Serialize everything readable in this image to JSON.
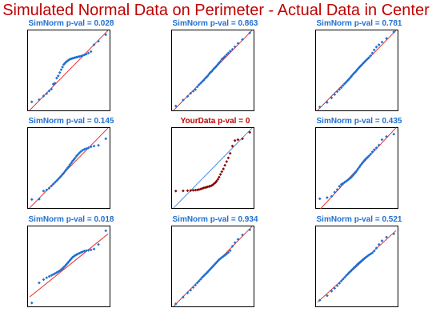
{
  "title": "Simulated Normal Data on Perimeter - Actual Data in Center",
  "colors": {
    "title": "#c00000",
    "sim_title": "#1f6fd0",
    "sim_points": "#1f6fd0",
    "sim_line": "#e03030",
    "actual_title": "#c00000",
    "actual_points": "#8b0000",
    "actual_line": "#4a90d9"
  },
  "chart_data": [
    {
      "type": "scatter",
      "title": "SimNorm p-val =  0.028",
      "theoretical": [
        -2.17,
        -1.74,
        -1.48,
        -1.3,
        -1.15,
        -1.02,
        -0.91,
        -0.81,
        -0.71,
        -0.62,
        -0.53,
        -0.45,
        -0.37,
        -0.3,
        -0.22,
        -0.15,
        -0.07,
        0,
        0.07,
        0.15,
        0.22,
        0.3,
        0.37,
        0.45,
        0.53,
        0.62,
        0.71,
        0.81,
        0.91,
        1.02,
        1.15,
        1.3,
        1.48,
        1.74,
        2.17
      ],
      "sample": [
        -1.72,
        -1.6,
        -1.4,
        -1.27,
        -1.12,
        -1.02,
        -0.75,
        -0.7,
        -0.42,
        -0.3,
        -0.12,
        0.04,
        0.18,
        0.32,
        0.4,
        0.47,
        0.52,
        0.57,
        0.61,
        0.64,
        0.66,
        0.68,
        0.7,
        0.72,
        0.74,
        0.76,
        0.78,
        0.81,
        0.85,
        0.89,
        0.95,
        1.03,
        1.4,
        1.6,
        1.95
      ],
      "line": {
        "slope": 0.95,
        "intercept": 0.0
      }
    },
    {
      "type": "scatter",
      "title": "SimNorm p-val =  0.863",
      "theoretical": [
        -2.17,
        -1.74,
        -1.48,
        -1.3,
        -1.15,
        -1.02,
        -0.91,
        -0.81,
        -0.71,
        -0.62,
        -0.53,
        -0.45,
        -0.37,
        -0.3,
        -0.22,
        -0.15,
        -0.07,
        0,
        0.07,
        0.15,
        0.22,
        0.3,
        0.37,
        0.45,
        0.53,
        0.62,
        0.71,
        0.81,
        0.91,
        1.02,
        1.15,
        1.3,
        1.48,
        1.74,
        2.17
      ],
      "sample": [
        -1.95,
        -1.62,
        -1.42,
        -1.25,
        -1.14,
        -1.05,
        -0.9,
        -0.79,
        -0.7,
        -0.61,
        -0.53,
        -0.44,
        -0.37,
        -0.3,
        -0.2,
        -0.12,
        -0.06,
        0.02,
        0.1,
        0.17,
        0.24,
        0.33,
        0.41,
        0.5,
        0.61,
        0.68,
        0.76,
        0.86,
        0.95,
        1.05,
        1.15,
        1.29,
        1.48,
        1.69,
        2.05
      ],
      "line": {
        "slope": 0.95,
        "intercept": 0.0
      }
    },
    {
      "type": "scatter",
      "title": "SimNorm p-val =  0.781",
      "theoretical": [
        -2.17,
        -1.74,
        -1.48,
        -1.3,
        -1.15,
        -1.02,
        -0.91,
        -0.81,
        -0.71,
        -0.62,
        -0.53,
        -0.45,
        -0.37,
        -0.3,
        -0.22,
        -0.15,
        -0.07,
        0,
        0.07,
        0.15,
        0.22,
        0.3,
        0.37,
        0.45,
        0.53,
        0.62,
        0.71,
        0.81,
        0.91,
        1.02,
        1.15,
        1.3,
        1.48,
        1.74,
        2.17
      ],
      "sample": [
        -2.0,
        -1.75,
        -1.5,
        -1.32,
        -1.16,
        -1.04,
        -0.94,
        -0.83,
        -0.73,
        -0.64,
        -0.55,
        -0.47,
        -0.38,
        -0.3,
        -0.21,
        -0.14,
        -0.07,
        0.01,
        0.09,
        0.17,
        0.24,
        0.31,
        0.39,
        0.46,
        0.54,
        0.62,
        0.7,
        0.8,
        0.95,
        1.12,
        1.28,
        1.4,
        1.55,
        1.75,
        2.1
      ],
      "line": {
        "slope": 0.95,
        "intercept": 0.0
      }
    },
    {
      "type": "scatter",
      "title": "SimNorm p-val =  0.145",
      "theoretical": [
        -2.17,
        -1.74,
        -1.48,
        -1.3,
        -1.15,
        -1.02,
        -0.91,
        -0.81,
        -0.71,
        -0.62,
        -0.53,
        -0.45,
        -0.37,
        -0.3,
        -0.22,
        -0.15,
        -0.07,
        0,
        0.07,
        0.15,
        0.22,
        0.3,
        0.37,
        0.45,
        0.53,
        0.62,
        0.71,
        0.81,
        0.91,
        1.02,
        1.15,
        1.3,
        1.48,
        1.74,
        2.17
      ],
      "sample": [
        -1.72,
        -1.7,
        -1.26,
        -1.2,
        -1.1,
        -0.98,
        -0.88,
        -0.79,
        -0.7,
        -0.61,
        -0.52,
        -0.44,
        -0.35,
        -0.28,
        -0.18,
        -0.09,
        0.0,
        0.08,
        0.18,
        0.28,
        0.38,
        0.46,
        0.55,
        0.65,
        0.73,
        0.82,
        0.9,
        0.97,
        1.02,
        1.06,
        1.1,
        1.16,
        1.2,
        1.24,
        1.6
      ],
      "line": {
        "slope": 0.95,
        "intercept": 0.0
      }
    },
    {
      "type": "scatter",
      "title": "YourData p-val =  0",
      "theoretical": [
        -2.17,
        -1.74,
        -1.48,
        -1.3,
        -1.15,
        -1.02,
        -0.91,
        -0.81,
        -0.71,
        -0.62,
        -0.53,
        -0.45,
        -0.37,
        -0.3,
        -0.22,
        -0.15,
        -0.07,
        0,
        0.07,
        0.15,
        0.22,
        0.3,
        0.37,
        0.45,
        0.53,
        0.62,
        0.71,
        0.81,
        0.91,
        1.02,
        1.15,
        1.3,
        1.48,
        1.74,
        2.17
      ],
      "sample": [
        -1.26,
        -1.25,
        -1.24,
        -1.23,
        -1.22,
        -1.21,
        -1.2,
        -1.18,
        -1.15,
        -1.12,
        -1.09,
        -1.07,
        -1.05,
        -1.03,
        -1.01,
        -0.99,
        -0.96,
        -0.92,
        -0.86,
        -0.8,
        -0.72,
        -0.62,
        -0.5,
        -0.35,
        -0.2,
        -0.05,
        0.15,
        0.35,
        0.55,
        0.8,
        1.2,
        1.5,
        1.55,
        1.6,
        1.95
      ],
      "line": {
        "slope": 0.95,
        "intercept": 0.0
      }
    },
    {
      "type": "scatter",
      "title": "SimNorm p-val =  0.435",
      "theoretical": [
        -2.17,
        -1.74,
        -1.48,
        -1.3,
        -1.15,
        -1.02,
        -0.91,
        -0.81,
        -0.71,
        -0.62,
        -0.53,
        -0.45,
        -0.37,
        -0.3,
        -0.22,
        -0.15,
        -0.07,
        0,
        0.07,
        0.15,
        0.22,
        0.3,
        0.37,
        0.45,
        0.53,
        0.62,
        0.71,
        0.81,
        0.91,
        1.02,
        1.15,
        1.3,
        1.48,
        1.74,
        2.17
      ],
      "sample": [
        -1.68,
        -1.62,
        -1.55,
        -1.32,
        -1.18,
        -1.0,
        -0.9,
        -0.84,
        -0.78,
        -0.72,
        -0.66,
        -0.6,
        -0.54,
        -0.48,
        -0.4,
        -0.32,
        -0.24,
        -0.15,
        -0.05,
        0.05,
        0.15,
        0.24,
        0.33,
        0.42,
        0.5,
        0.58,
        0.66,
        0.76,
        0.88,
        1.0,
        1.1,
        1.25,
        1.55,
        1.72,
        1.85
      ],
      "line": {
        "slope": 1.0,
        "intercept": -0.1
      }
    },
    {
      "type": "scatter",
      "title": "SimNorm p-val =  0.018",
      "theoretical": [
        -2.17,
        -1.74,
        -1.48,
        -1.3,
        -1.15,
        -1.02,
        -0.91,
        -0.81,
        -0.71,
        -0.62,
        -0.53,
        -0.45,
        -0.37,
        -0.3,
        -0.22,
        -0.15,
        -0.07,
        0,
        0.07,
        0.15,
        0.22,
        0.3,
        0.37,
        0.45,
        0.53,
        0.62,
        0.71,
        0.81,
        0.91,
        1.02,
        1.15,
        1.3,
        1.48,
        1.74,
        2.17
      ],
      "sample": [
        -2.0,
        -0.9,
        -0.72,
        -0.62,
        -0.55,
        -0.49,
        -0.44,
        -0.39,
        -0.34,
        -0.29,
        -0.24,
        -0.18,
        -0.12,
        -0.05,
        0.02,
        0.1,
        0.18,
        0.26,
        0.34,
        0.42,
        0.5,
        0.55,
        0.6,
        0.64,
        0.68,
        0.72,
        0.76,
        0.8,
        0.84,
        0.86,
        0.88,
        0.9,
        0.95,
        1.2,
        1.95
      ],
      "line": {
        "slope": 0.75,
        "intercept": 0.05
      }
    },
    {
      "type": "scatter",
      "title": "SimNorm p-val =  0.934",
      "theoretical": [
        -2.17,
        -1.74,
        -1.48,
        -1.3,
        -1.15,
        -1.02,
        -0.91,
        -0.81,
        -0.71,
        -0.62,
        -0.53,
        -0.45,
        -0.37,
        -0.3,
        -0.22,
        -0.15,
        -0.07,
        0,
        0.07,
        0.15,
        0.22,
        0.3,
        0.37,
        0.45,
        0.53,
        0.62,
        0.71,
        0.81,
        0.91,
        1.02,
        1.15,
        1.3,
        1.48,
        1.74,
        2.17
      ],
      "sample": [
        -2.05,
        -1.68,
        -1.45,
        -1.3,
        -1.15,
        -1.02,
        -0.9,
        -0.8,
        -0.7,
        -0.6,
        -0.52,
        -0.44,
        -0.37,
        -0.3,
        -0.22,
        -0.15,
        -0.07,
        0.0,
        0.07,
        0.15,
        0.22,
        0.3,
        0.37,
        0.43,
        0.49,
        0.55,
        0.61,
        0.68,
        0.76,
        0.86,
        1.1,
        1.3,
        1.48,
        1.72,
        2.0
      ],
      "line": {
        "slope": 0.95,
        "intercept": 0.0
      }
    },
    {
      "type": "scatter",
      "title": "SimNorm p-val =  0.521",
      "theoretical": [
        -2.17,
        -1.74,
        -1.48,
        -1.3,
        -1.15,
        -1.02,
        -0.91,
        -0.81,
        -0.71,
        -0.62,
        -0.53,
        -0.45,
        -0.37,
        -0.3,
        -0.22,
        -0.15,
        -0.07,
        0,
        0.07,
        0.15,
        0.22,
        0.3,
        0.37,
        0.45,
        0.53,
        0.62,
        0.71,
        0.81,
        0.91,
        1.02,
        1.15,
        1.3,
        1.48,
        1.74,
        2.17
      ],
      "sample": [
        -1.85,
        -1.6,
        -1.35,
        -1.2,
        -1.05,
        -0.92,
        -0.8,
        -0.7,
        -0.6,
        -0.5,
        -0.42,
        -0.34,
        -0.27,
        -0.2,
        -0.13,
        -0.06,
        0.0,
        0.07,
        0.14,
        0.2,
        0.26,
        0.32,
        0.38,
        0.44,
        0.5,
        0.56,
        0.62,
        0.68,
        0.74,
        0.84,
        1.0,
        1.2,
        1.4,
        1.6,
        1.78
      ],
      "line": {
        "slope": 0.85,
        "intercept": 0.0
      }
    }
  ]
}
